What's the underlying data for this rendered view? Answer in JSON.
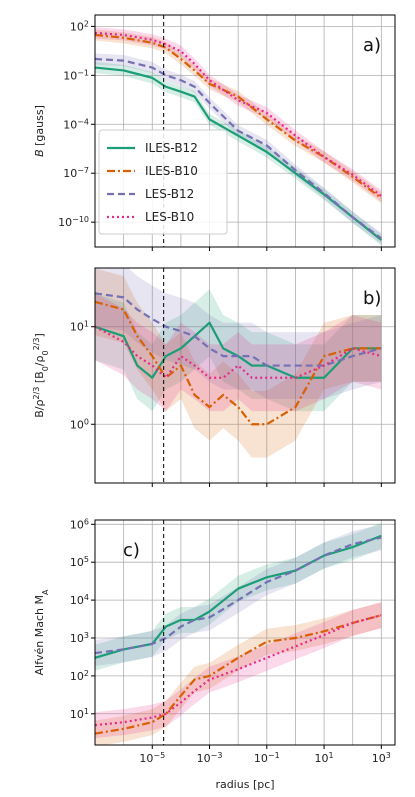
{
  "colors": {
    "ILES-B12": "#1b9e77",
    "ILES-B10": "#d95f02",
    "LES-B12": "#7570b3",
    "LES-B10": "#e7298a",
    "vline": "#000000"
  },
  "shared": {
    "xlabel": "radius [pc]",
    "xlog": true,
    "xlim": [
      1e-07,
      3000
    ],
    "xticks": [
      1e-05,
      0.001,
      0.1,
      10,
      1000
    ],
    "xtick_labels": [
      "10^-5",
      "10^-3",
      "10^-1",
      "10^1",
      "10^3"
    ],
    "vline_x": 2.5e-05
  },
  "legend": [
    "ILES-B12",
    "ILES-B10",
    "LES-B12",
    "LES-B10"
  ],
  "chart_data": [
    {
      "panel_label": "a)",
      "type": "line",
      "ylabel": "B [gauss]",
      "ylog": true,
      "ylim": [
        3e-12,
        500
      ],
      "yticks": [
        1e-10,
        1e-07,
        0.0001,
        0.1,
        100
      ],
      "ytick_labels": [
        "10^-10",
        "10^-7",
        "10^-4",
        "10^-1",
        "10^2"
      ],
      "legend_position": "center-left",
      "series": [
        {
          "name": "ILES-B12",
          "style": "solid",
          "band": true,
          "x": [
            1e-07,
            1e-06,
            1e-05,
            3e-05,
            0.0001,
            0.0003,
            0.001,
            0.01,
            0.1,
            1,
            10,
            100,
            1000
          ],
          "y": [
            0.3,
            0.2,
            0.07,
            0.02,
            0.01,
            0.005,
            0.0002,
            2e-05,
            2e-06,
            1e-07,
            5e-09,
            2e-10,
            8e-12
          ]
        },
        {
          "name": "ILES-B10",
          "style": "dashdot",
          "band": true,
          "x": [
            1e-07,
            1e-06,
            1e-05,
            3e-05,
            0.0001,
            0.0003,
            0.001,
            0.01,
            0.1,
            1,
            10,
            100,
            1000
          ],
          "y": [
            30,
            20,
            10,
            5,
            1,
            0.2,
            0.03,
            0.005,
            0.0002,
            1e-05,
            1e-06,
            6e-08,
            3e-09
          ]
        },
        {
          "name": "LES-B12",
          "style": "dashed",
          "band": true,
          "x": [
            1e-07,
            1e-06,
            1e-05,
            3e-05,
            0.0001,
            0.0003,
            0.001,
            0.01,
            0.1,
            1,
            10,
            100,
            1000
          ],
          "y": [
            1,
            0.8,
            0.3,
            0.1,
            0.05,
            0.02,
            0.002,
            4e-05,
            5e-06,
            1.5e-07,
            6e-09,
            2e-10,
            1e-11
          ]
        },
        {
          "name": "LES-B10",
          "style": "dotted",
          "band": true,
          "x": [
            1e-07,
            1e-06,
            1e-05,
            3e-05,
            0.0001,
            0.0003,
            0.001,
            0.01,
            0.1,
            1,
            10,
            100,
            1000
          ],
          "y": [
            40,
            30,
            15,
            8,
            3,
            0.5,
            0.05,
            0.003,
            0.0005,
            2e-05,
            1e-06,
            8e-08,
            4e-09
          ]
        }
      ]
    },
    {
      "panel_label": "b)",
      "type": "line",
      "ylabel": "B/ρ^2/3 [B0/ρ0^2/3]",
      "ylog": true,
      "ylim": [
        0.25,
        40
      ],
      "yticks": [
        1,
        10
      ],
      "ytick_labels": [
        "10^0",
        "10^1"
      ],
      "series": [
        {
          "name": "ILES-B12",
          "style": "solid",
          "band": true,
          "x": [
            1e-07,
            1e-06,
            3e-06,
            1e-05,
            3e-05,
            0.0001,
            0.0003,
            0.001,
            0.003,
            0.01,
            0.03,
            0.1,
            1,
            10,
            100,
            1000
          ],
          "y": [
            10,
            8,
            4,
            3,
            5,
            6,
            8,
            11,
            6,
            5,
            4,
            4,
            3,
            3,
            6,
            6
          ]
        },
        {
          "name": "ILES-B10",
          "style": "dashdot",
          "band": true,
          "x": [
            1e-07,
            1e-06,
            3e-06,
            1e-05,
            3e-05,
            0.0001,
            0.0003,
            0.001,
            0.003,
            0.01,
            0.03,
            0.1,
            1,
            10,
            100,
            1000
          ],
          "y": [
            18,
            15,
            8,
            5,
            3,
            4,
            2,
            1.5,
            2,
            1.5,
            1.0,
            1.0,
            1.5,
            5,
            6,
            6
          ]
        },
        {
          "name": "LES-B12",
          "style": "dashed",
          "band": true,
          "x": [
            1e-07,
            1e-06,
            3e-06,
            1e-05,
            3e-05,
            0.0001,
            0.0003,
            0.001,
            0.003,
            0.01,
            0.03,
            0.1,
            1,
            10,
            100,
            1000
          ],
          "y": [
            22,
            20,
            15,
            12,
            10,
            9,
            8,
            6,
            5,
            5,
            5,
            4,
            4,
            4,
            5,
            6
          ]
        },
        {
          "name": "LES-B10",
          "style": "dotted",
          "band": true,
          "x": [
            1e-07,
            1e-06,
            3e-06,
            1e-05,
            3e-05,
            0.0001,
            0.0003,
            0.001,
            0.003,
            0.01,
            0.03,
            0.1,
            1,
            10,
            100,
            1000
          ],
          "y": [
            10,
            7,
            5,
            4,
            3,
            5,
            4,
            3,
            3,
            4,
            3,
            3,
            3,
            4,
            6,
            5
          ]
        }
      ]
    },
    {
      "panel_label": "c)",
      "type": "line",
      "ylabel": "Alfvén Mach M_A",
      "ylog": true,
      "ylim": [
        1.5,
        1300000.0
      ],
      "yticks": [
        10,
        100,
        1000,
        10000,
        100000,
        1000000
      ],
      "ytick_labels": [
        "10^1",
        "10^2",
        "10^3",
        "10^4",
        "10^5",
        "10^6"
      ],
      "series": [
        {
          "name": "ILES-B12",
          "style": "solid",
          "band": true,
          "x": [
            1e-07,
            1e-06,
            1e-05,
            3e-05,
            0.0001,
            0.0003,
            0.001,
            0.01,
            0.1,
            1,
            10,
            100,
            1000
          ],
          "y": [
            300,
            500,
            700,
            2000,
            3000,
            3000,
            5000,
            20000,
            40000,
            60000,
            150000,
            250000,
            500000
          ]
        },
        {
          "name": "ILES-B10",
          "style": "dashdot",
          "band": true,
          "x": [
            1e-07,
            1e-06,
            1e-05,
            3e-05,
            0.0001,
            0.0003,
            0.001,
            0.01,
            0.1,
            1,
            10,
            100,
            1000
          ],
          "y": [
            3,
            4,
            6,
            10,
            30,
            80,
            100,
            300,
            800,
            1000,
            1500,
            2500,
            4000
          ]
        },
        {
          "name": "LES-B12",
          "style": "dashed",
          "band": true,
          "x": [
            1e-07,
            1e-06,
            1e-05,
            3e-05,
            0.0001,
            0.0003,
            0.001,
            0.01,
            0.1,
            1,
            10,
            100,
            1000
          ],
          "y": [
            400,
            500,
            700,
            1000,
            2000,
            3000,
            3500,
            10000,
            30000,
            60000,
            150000,
            300000,
            450000
          ]
        },
        {
          "name": "LES-B10",
          "style": "dotted",
          "band": true,
          "x": [
            1e-07,
            1e-06,
            1e-05,
            3e-05,
            0.0001,
            0.0003,
            0.001,
            0.01,
            0.1,
            1,
            10,
            100,
            1000
          ],
          "y": [
            5,
            6,
            8,
            10,
            20,
            40,
            80,
            150,
            300,
            600,
            1200,
            2500,
            4000
          ]
        }
      ]
    }
  ]
}
